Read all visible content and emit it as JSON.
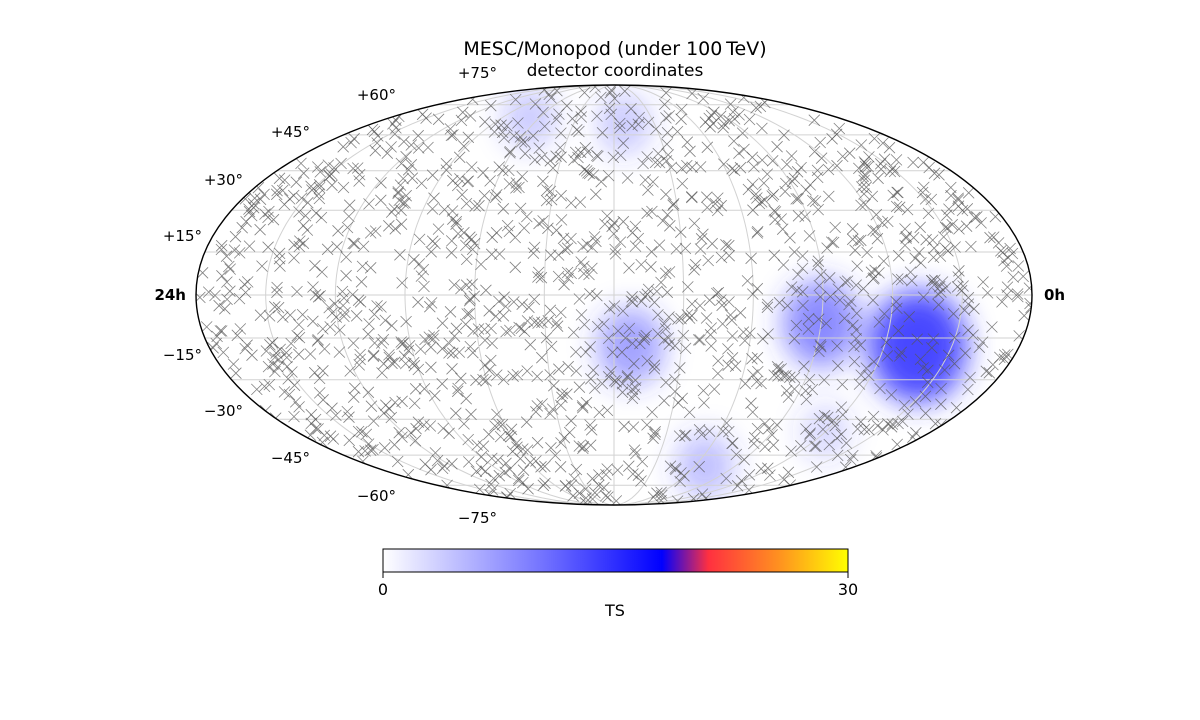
{
  "chart_data": {
    "type": "scatter",
    "projection": "mollweide",
    "title": "MESC/Monopod (under 100 TeV)",
    "subtitle": "detector coordinates",
    "ra_label_left": "24h",
    "ra_label_right": "0h",
    "dec_tick_labels_north": [
      "+75°",
      "+60°",
      "+45°",
      "+30°",
      "+15°"
    ],
    "dec_tick_labels_south": [
      "−15°",
      "−30°",
      "−45°",
      "−60°",
      "−75°"
    ],
    "dec_grid_deg": [
      -75,
      -60,
      -45,
      -30,
      -15,
      0,
      15,
      30,
      45,
      60,
      75
    ],
    "ra_grid_deg": [
      -150,
      -120,
      -90,
      -60,
      -30,
      0,
      30,
      60,
      90,
      120,
      150
    ],
    "grid": true,
    "markers": "x",
    "marker_color": "#555555",
    "event_count_approx": 1400,
    "ts_hotspots": [
      {
        "ra_h": 21.0,
        "dec_deg": -18,
        "ts_peak": 14
      },
      {
        "ra_h": 18.0,
        "dec_deg": -10,
        "ts_peak": 9
      },
      {
        "ra_h": 12.5,
        "dec_deg": -18,
        "ts_peak": 7
      },
      {
        "ra_h": 12.5,
        "dec_deg": 65,
        "ts_peak": 4
      },
      {
        "ra_h": 7.5,
        "dec_deg": 68,
        "ts_peak": 4
      },
      {
        "ra_h": 16.5,
        "dec_deg": -65,
        "ts_peak": 5
      },
      {
        "ra_h": 20.0,
        "dec_deg": -50,
        "ts_peak": 3
      }
    ],
    "colorbar": {
      "label": "TS",
      "min": 0,
      "max": 30,
      "tick_labels": [
        "0",
        "30"
      ],
      "colormap": [
        "#ffffff",
        "#0000ff",
        "#ff4040",
        "#ffff00"
      ]
    }
  }
}
